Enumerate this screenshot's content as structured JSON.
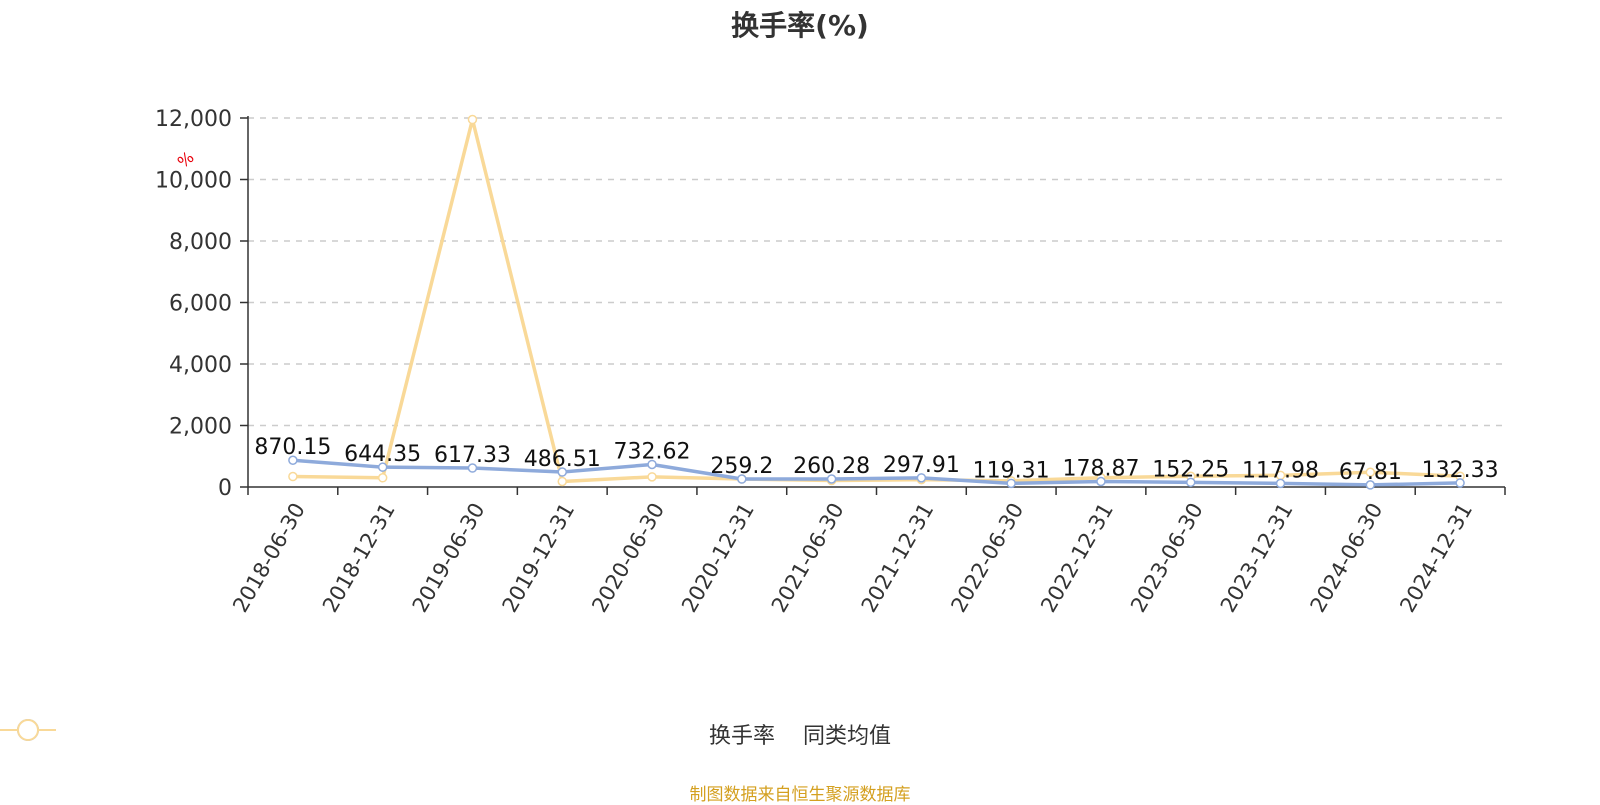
{
  "title": "换手率(%)",
  "source": "制图数据来自恒生聚源数据库",
  "colors": {
    "turnover": "#8eaadb",
    "peer_avg": "#f9d998",
    "grid": "#cccccc",
    "axis": "#333333",
    "unit": "#e8000b"
  },
  "chart_data": {
    "type": "line",
    "title": "换手率(%)",
    "ylabel": "%",
    "ylim": [
      0,
      12000
    ],
    "yticks": [
      0,
      2000,
      4000,
      6000,
      8000,
      10000,
      12000
    ],
    "ytick_labels": [
      "0",
      "2,000",
      "4,000",
      "6,000",
      "8,000",
      "10,000",
      "12,000"
    ],
    "grid": true,
    "legend_position": "bottom",
    "categories": [
      "2018-06-30",
      "2018-12-31",
      "2019-06-30",
      "2019-12-31",
      "2020-06-30",
      "2020-12-31",
      "2021-06-30",
      "2021-12-31",
      "2022-06-30",
      "2022-12-31",
      "2023-06-30",
      "2023-12-31",
      "2024-06-30",
      "2024-12-31"
    ],
    "series": [
      {
        "name": "换手率",
        "values": [
          870.15,
          644.35,
          617.33,
          486.51,
          732.62,
          259.2,
          260.28,
          297.91,
          119.31,
          178.87,
          152.25,
          117.98,
          67.81,
          132.33
        ],
        "labels": [
          "870.15",
          "644.35",
          "617.33",
          "486.51",
          "732.62",
          "259.2",
          "260.28",
          "297.91",
          "119.31",
          "178.87",
          "152.25",
          "117.98",
          "67.81",
          "132.33"
        ]
      },
      {
        "name": "同类均值",
        "values": [
          340,
          300,
          11950,
          180,
          330,
          260,
          210,
          240,
          200,
          300,
          350,
          380,
          480,
          350
        ]
      }
    ]
  }
}
